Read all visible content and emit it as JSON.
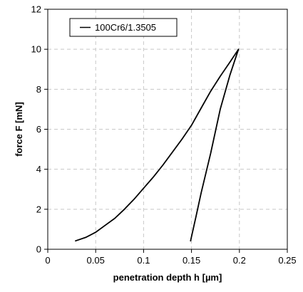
{
  "chart_data": {
    "type": "line",
    "xlabel": "penetration depth h [µm]",
    "ylabel": "force F [mN]",
    "xlim": [
      0,
      0.25
    ],
    "ylim": [
      0,
      12
    ],
    "xticks": [
      0,
      0.05,
      0.1,
      0.15,
      0.2,
      0.25
    ],
    "xtick_labels": [
      "0",
      "0.05",
      "0.1",
      "0.15",
      "0.2",
      "0.25"
    ],
    "yticks": [
      0,
      2,
      4,
      6,
      8,
      10,
      12
    ],
    "ytick_labels": [
      "0",
      "2",
      "4",
      "6",
      "8",
      "10",
      "12"
    ],
    "grid": true,
    "legend_position": "top-left",
    "series": [
      {
        "name": "100Cr6/1.3505",
        "color": "#000000",
        "x": [
          0.029,
          0.04,
          0.05,
          0.06,
          0.07,
          0.08,
          0.09,
          0.1,
          0.11,
          0.12,
          0.13,
          0.14,
          0.15,
          0.16,
          0.17,
          0.18,
          0.19,
          0.199,
          0.19,
          0.18,
          0.17,
          0.16,
          0.155,
          0.149
        ],
        "y": [
          0.42,
          0.6,
          0.85,
          1.2,
          1.55,
          2.0,
          2.5,
          3.05,
          3.6,
          4.2,
          4.85,
          5.5,
          6.2,
          7.05,
          7.9,
          8.65,
          9.35,
          10.0,
          8.7,
          7.0,
          4.8,
          2.8,
          1.7,
          0.42
        ]
      }
    ]
  }
}
